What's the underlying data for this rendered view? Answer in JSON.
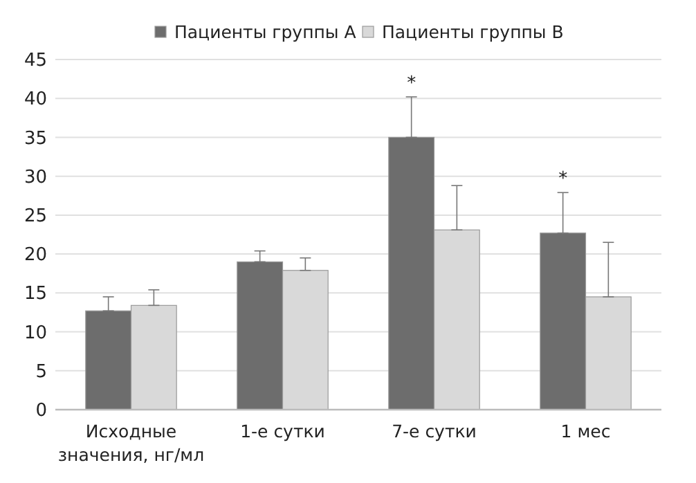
{
  "chart_data": {
    "type": "bar",
    "categories": [
      "Исходные значения, нг/мл",
      "1-е сутки",
      "7-е сутки",
      "1 мес"
    ],
    "series": [
      {
        "name": "Пациенты группы А",
        "color": "#6d6d6d",
        "values": [
          12.7,
          19.0,
          35.0,
          22.7
        ],
        "errors": [
          [
            12.7,
            14.5
          ],
          [
            19.0,
            20.4
          ],
          [
            35.0,
            40.2
          ],
          [
            22.7,
            27.9
          ]
        ]
      },
      {
        "name": "Пациенты группы В",
        "color": "#d9d9d9",
        "values": [
          13.4,
          17.9,
          23.1,
          14.5
        ],
        "errors": [
          [
            13.4,
            15.4
          ],
          [
            17.9,
            19.5
          ],
          [
            23.1,
            28.8
          ],
          [
            14.5,
            21.5
          ]
        ]
      }
    ],
    "ylim": [
      0,
      45
    ],
    "yticks": [
      0,
      5,
      10,
      15,
      20,
      25,
      30,
      35,
      40,
      45
    ],
    "grid": "y",
    "legend": "top",
    "annotations": [
      {
        "text": "*",
        "x": "7-е сутки",
        "y": 35.0
      },
      {
        "text": "*",
        "x": "1 мес",
        "y": 22.7
      }
    ]
  }
}
